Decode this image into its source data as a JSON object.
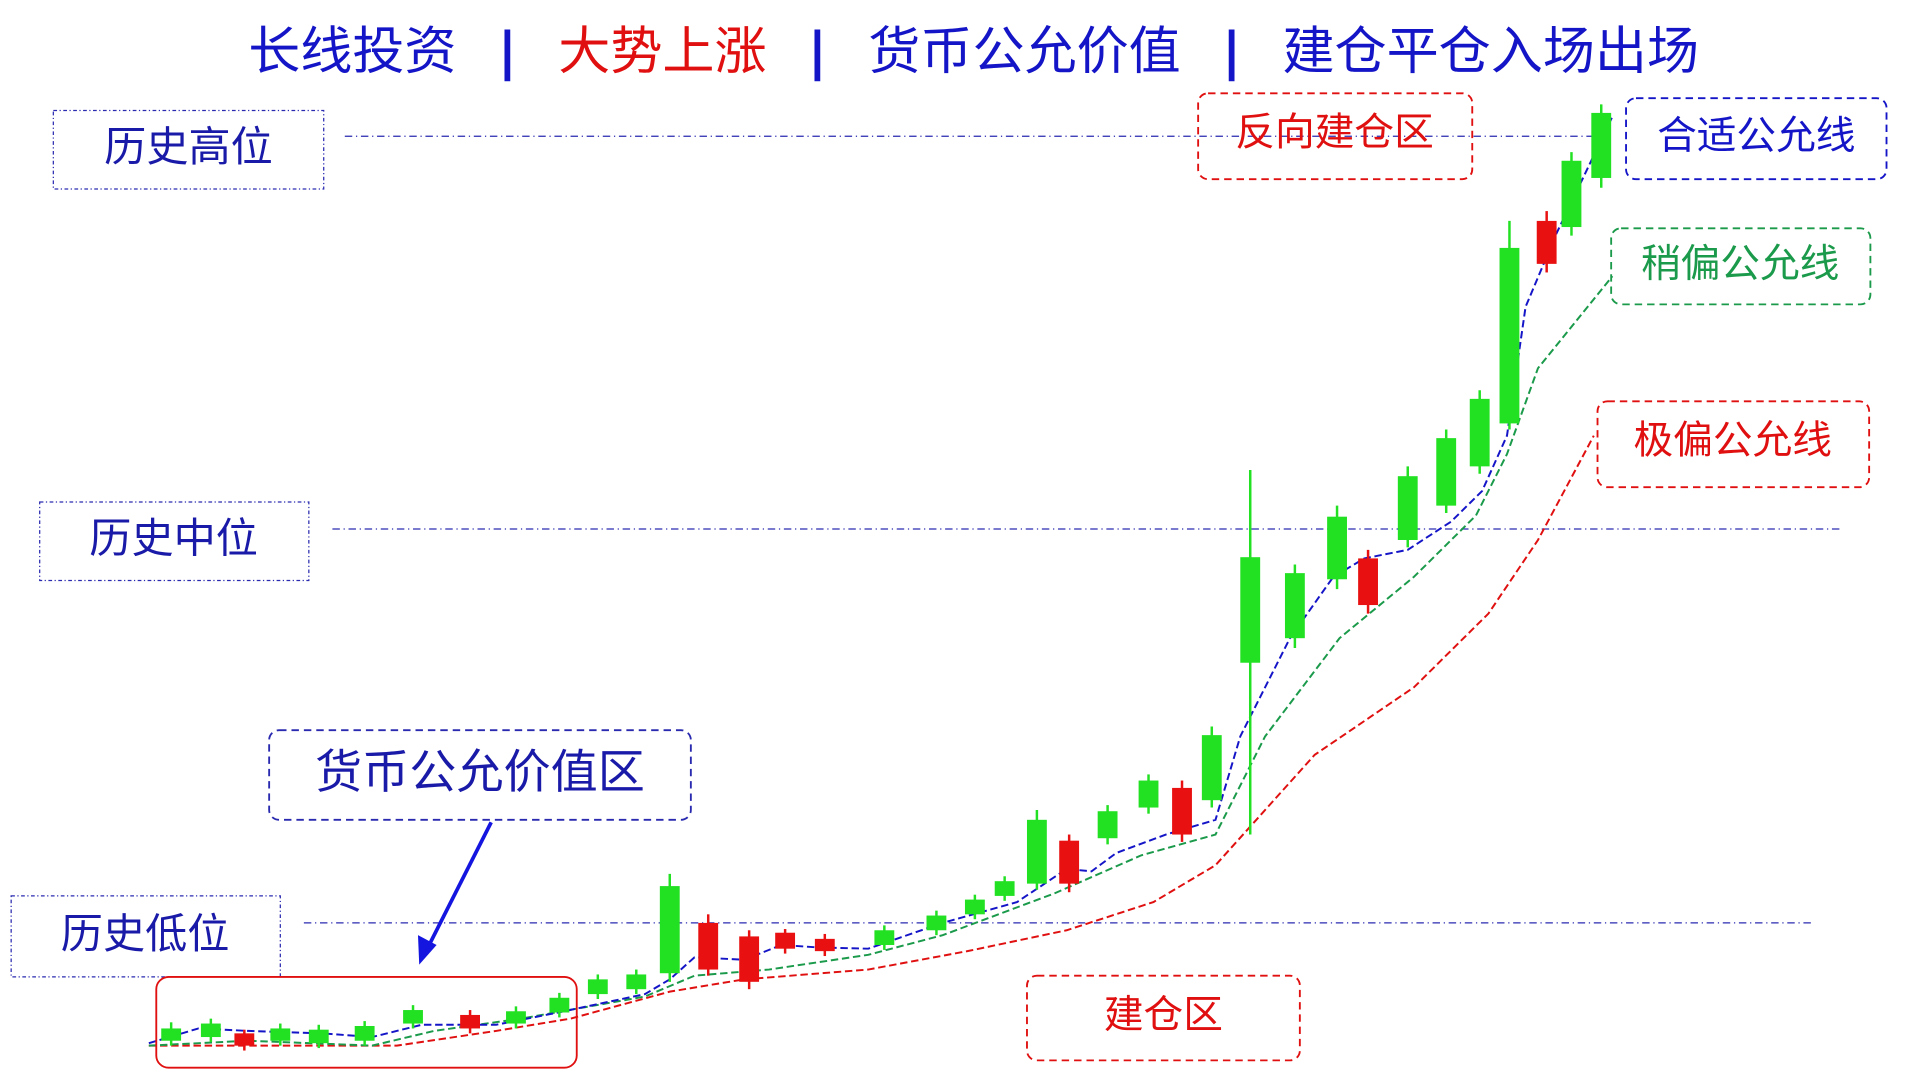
{
  "title": {
    "segments": [
      "长线投资",
      "|",
      "大势上涨",
      "|",
      "货币公允价值",
      "|",
      "建仓平仓入场出场"
    ]
  },
  "levels": {
    "high": "历史高位",
    "mid": "历史中位",
    "low": "历史低位"
  },
  "zones": {
    "reverse": "反向建仓区",
    "fair_value": "货币公允价值区",
    "build": "建仓区"
  },
  "lines": {
    "fit": "合适公允线",
    "slight": "稍偏公允线",
    "extreme": "极偏公允线"
  }
}
